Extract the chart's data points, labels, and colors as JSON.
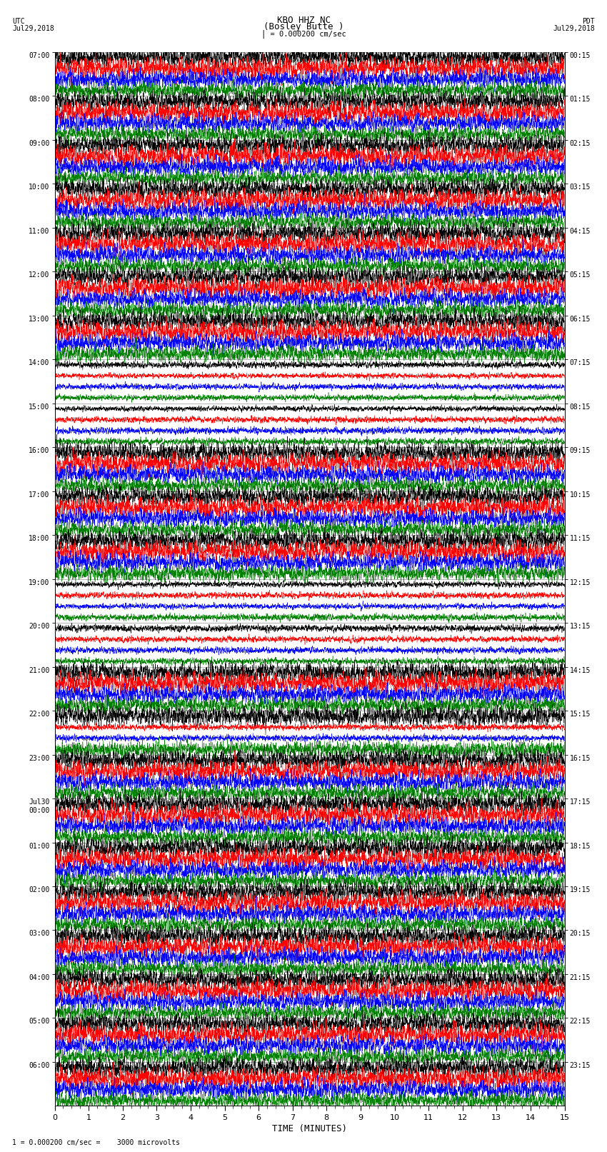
{
  "title_line1": "KBO HHZ NC",
  "title_line2": "(Bosley Butte )",
  "scale_label": "= 0.000200 cm/sec",
  "left_date_line1": "UTC",
  "left_date_line2": "Jul29,2018",
  "right_date_line1": "PDT",
  "right_date_line2": "Jul29,2018",
  "bottom_label": "TIME (MINUTES)",
  "bottom_note": "1 = 0.000200 cm/sec =    3000 microvolts",
  "left_times": [
    "07:00",
    "08:00",
    "09:00",
    "10:00",
    "11:00",
    "12:00",
    "13:00",
    "14:00",
    "15:00",
    "16:00",
    "17:00",
    "18:00",
    "19:00",
    "20:00",
    "21:00",
    "22:00",
    "23:00",
    "Jul30\n00:00",
    "01:00",
    "02:00",
    "03:00",
    "04:00",
    "05:00",
    "06:00"
  ],
  "right_times": [
    "00:15",
    "01:15",
    "02:15",
    "03:15",
    "04:15",
    "05:15",
    "06:15",
    "07:15",
    "08:15",
    "09:15",
    "10:15",
    "11:15",
    "12:15",
    "13:15",
    "14:15",
    "15:15",
    "16:15",
    "17:15",
    "18:15",
    "19:15",
    "20:15",
    "21:15",
    "22:15",
    "23:15"
  ],
  "trace_colors_cycle": [
    "black",
    "red",
    "blue",
    "green"
  ],
  "n_rows": 96,
  "minutes": 15,
  "bg_color": "white",
  "large_amp_rows": [
    28,
    29,
    30,
    31,
    32,
    33,
    34,
    35
  ],
  "large_blue_row": 61,
  "spike_rows": [
    48,
    49,
    50,
    51
  ],
  "quake_rows": [
    52,
    53,
    54,
    55
  ]
}
